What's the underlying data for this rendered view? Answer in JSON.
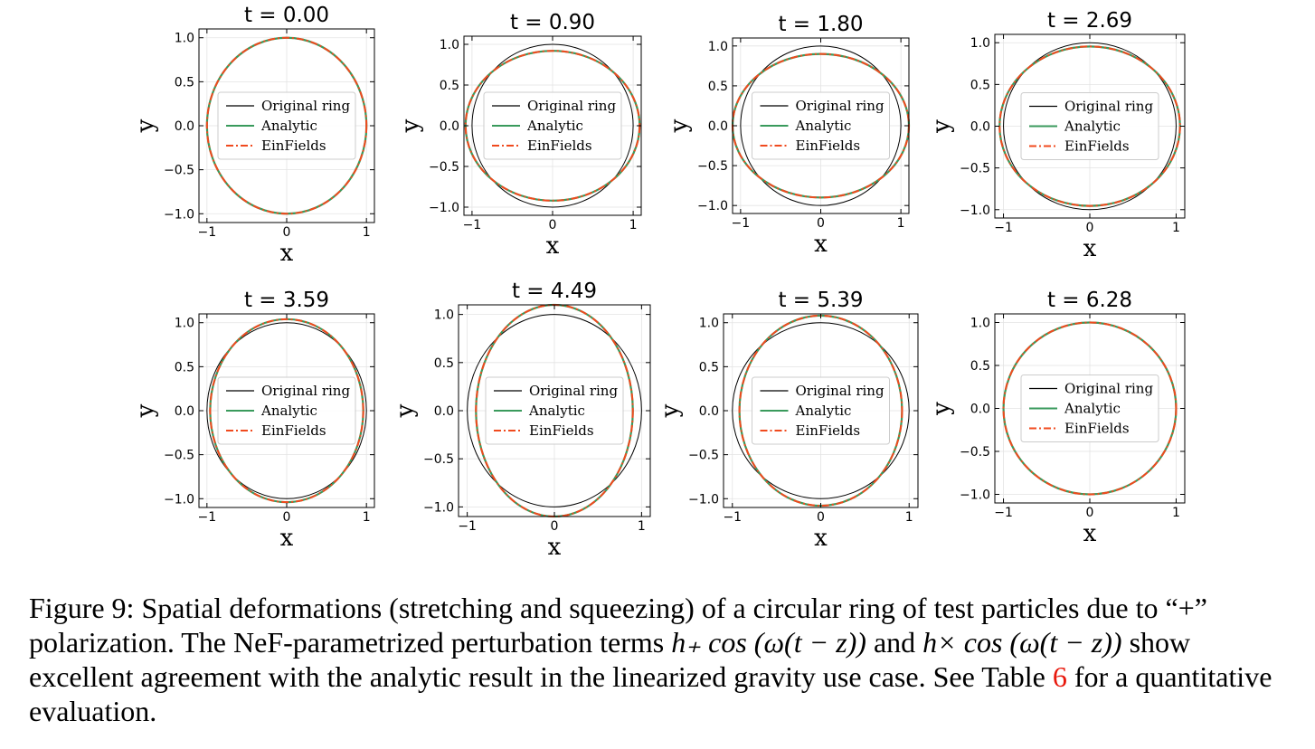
{
  "chart_data": [
    {
      "type": "line",
      "title": "t = 0.00",
      "t": 0.0,
      "xlabel": "x",
      "ylabel": "y",
      "xlim": [
        -1.1,
        1.1
      ],
      "ylim": [
        -1.1,
        1.1
      ],
      "xticks": [
        "−1",
        "0",
        "1"
      ],
      "yticks": [
        "1.0",
        "0.5",
        "0.0",
        "−0.5",
        "−1.0"
      ],
      "grid": true,
      "legend": "center",
      "series": [
        {
          "name": "Original ring",
          "color": "#000000",
          "style": "solid",
          "a": 1.0,
          "b": 1.0
        },
        {
          "name": "Analytic",
          "color": "#3a9a5c",
          "style": "solid",
          "a": 1.0,
          "b": 1.0
        },
        {
          "name": "EinFields",
          "color": "#f04a1e",
          "style": "dashdot",
          "a": 1.0,
          "b": 1.0
        }
      ]
    },
    {
      "type": "line",
      "title": "t = 0.90",
      "t": 0.9,
      "xlabel": "x",
      "ylabel": "y",
      "xlim": [
        -1.1,
        1.1
      ],
      "ylim": [
        -1.1,
        1.1
      ],
      "xticks": [
        "−1",
        "0",
        "1"
      ],
      "yticks": [
        "1.0",
        "0.5",
        "0.0",
        "−0.5",
        "−1.0"
      ],
      "grid": true,
      "legend": "center",
      "series": [
        {
          "name": "Original ring",
          "color": "#000000",
          "style": "solid",
          "a": 1.0,
          "b": 1.0
        },
        {
          "name": "Analytic",
          "color": "#3a9a5c",
          "style": "solid",
          "a": 1.08,
          "b": 0.92
        },
        {
          "name": "EinFields",
          "color": "#f04a1e",
          "style": "dashdot",
          "a": 1.08,
          "b": 0.92
        }
      ]
    },
    {
      "type": "line",
      "title": "t = 1.80",
      "t": 1.8,
      "xlabel": "x",
      "ylabel": "y",
      "xlim": [
        -1.1,
        1.1
      ],
      "ylim": [
        -1.1,
        1.1
      ],
      "xticks": [
        "−1",
        "0",
        "1"
      ],
      "yticks": [
        "1.0",
        "0.5",
        "0.0",
        "−0.5",
        "−1.0"
      ],
      "grid": true,
      "legend": "center",
      "series": [
        {
          "name": "Original ring",
          "color": "#000000",
          "style": "solid",
          "a": 1.0,
          "b": 1.0
        },
        {
          "name": "Analytic",
          "color": "#3a9a5c",
          "style": "solid",
          "a": 1.1,
          "b": 0.9
        },
        {
          "name": "EinFields",
          "color": "#f04a1e",
          "style": "dashdot",
          "a": 1.1,
          "b": 0.9
        }
      ]
    },
    {
      "type": "line",
      "title": "t = 2.69",
      "t": 2.69,
      "xlabel": "x",
      "ylabel": "y",
      "xlim": [
        -1.1,
        1.1
      ],
      "ylim": [
        -1.1,
        1.1
      ],
      "xticks": [
        "−1",
        "0",
        "1"
      ],
      "yticks": [
        "1.0",
        "0.5",
        "0.0",
        "−0.5",
        "−1.0"
      ],
      "grid": true,
      "legend": "center",
      "series": [
        {
          "name": "Original ring",
          "color": "#000000",
          "style": "solid",
          "a": 1.0,
          "b": 1.0
        },
        {
          "name": "Analytic",
          "color": "#3a9a5c",
          "style": "solid",
          "a": 1.045,
          "b": 0.955
        },
        {
          "name": "EinFields",
          "color": "#f04a1e",
          "style": "dashdot",
          "a": 1.045,
          "b": 0.955
        }
      ]
    },
    {
      "type": "line",
      "title": "t = 3.59",
      "t": 3.59,
      "xlabel": "x",
      "ylabel": "y",
      "xlim": [
        -1.1,
        1.1
      ],
      "ylim": [
        -1.1,
        1.1
      ],
      "xticks": [
        "−1",
        "0",
        "1"
      ],
      "yticks": [
        "1.0",
        "0.5",
        "0.0",
        "−0.5",
        "−1.0"
      ],
      "grid": true,
      "legend": "center",
      "series": [
        {
          "name": "Original ring",
          "color": "#000000",
          "style": "solid",
          "a": 1.0,
          "b": 1.0
        },
        {
          "name": "Analytic",
          "color": "#3a9a5c",
          "style": "solid",
          "a": 0.96,
          "b": 1.04
        },
        {
          "name": "EinFields",
          "color": "#f04a1e",
          "style": "dashdot",
          "a": 0.96,
          "b": 1.04
        }
      ]
    },
    {
      "type": "line",
      "title": "t = 4.49",
      "t": 4.49,
      "xlabel": "x",
      "ylabel": "y",
      "xlim": [
        -1.1,
        1.1
      ],
      "ylim": [
        -1.1,
        1.1
      ],
      "xticks": [
        "−1",
        "0",
        "1"
      ],
      "yticks": [
        "1.0",
        "0.5",
        "0.0",
        "−0.5",
        "−1.0"
      ],
      "grid": true,
      "legend": "center",
      "series": [
        {
          "name": "Original ring",
          "color": "#000000",
          "style": "solid",
          "a": 1.0,
          "b": 1.0
        },
        {
          "name": "Analytic",
          "color": "#3a9a5c",
          "style": "solid",
          "a": 0.9,
          "b": 1.1
        },
        {
          "name": "EinFields",
          "color": "#f04a1e",
          "style": "dashdot",
          "a": 0.9,
          "b": 1.1
        }
      ]
    },
    {
      "type": "line",
      "title": "t = 5.39",
      "t": 5.39,
      "xlabel": "x",
      "ylabel": "y",
      "xlim": [
        -1.1,
        1.1
      ],
      "ylim": [
        -1.1,
        1.1
      ],
      "xticks": [
        "−1",
        "0",
        "1"
      ],
      "yticks": [
        "1.0",
        "0.5",
        "0.0",
        "−0.5",
        "−1.0"
      ],
      "grid": true,
      "legend": "center",
      "series": [
        {
          "name": "Original ring",
          "color": "#000000",
          "style": "solid",
          "a": 1.0,
          "b": 1.0
        },
        {
          "name": "Analytic",
          "color": "#3a9a5c",
          "style": "solid",
          "a": 0.92,
          "b": 1.08
        },
        {
          "name": "EinFields",
          "color": "#f04a1e",
          "style": "dashdot",
          "a": 0.92,
          "b": 1.08
        }
      ]
    },
    {
      "type": "line",
      "title": "t = 6.28",
      "t": 6.28,
      "xlabel": "x",
      "ylabel": "y",
      "xlim": [
        -1.1,
        1.1
      ],
      "ylim": [
        -1.1,
        1.1
      ],
      "xticks": [
        "−1",
        "0",
        "1"
      ],
      "yticks": [
        "1.0",
        "0.5",
        "0.0",
        "−0.5",
        "−1.0"
      ],
      "grid": true,
      "legend": "center",
      "series": [
        {
          "name": "Original ring",
          "color": "#000000",
          "style": "solid",
          "a": 1.0,
          "b": 1.0
        },
        {
          "name": "Analytic",
          "color": "#3a9a5c",
          "style": "solid",
          "a": 1.0,
          "b": 1.0
        },
        {
          "name": "EinFields",
          "color": "#f04a1e",
          "style": "dashdot",
          "a": 1.0,
          "b": 1.0
        }
      ]
    }
  ],
  "caption": {
    "label": "Figure 9:",
    "text1": "Spatial deformations (stretching and squeezing) of a circular ring of test particles due to “+” polarization. The NeF-parametrized perturbation terms",
    "math1": "h₊ cos (ω(t − z))",
    "text2": "and",
    "math2": "h× cos (ω(t − z))",
    "text3": "show excellent agreement with the analytic result in the linearized gravity use case. See Table",
    "ref": "6",
    "text4": "for a quantitative evaluation."
  }
}
